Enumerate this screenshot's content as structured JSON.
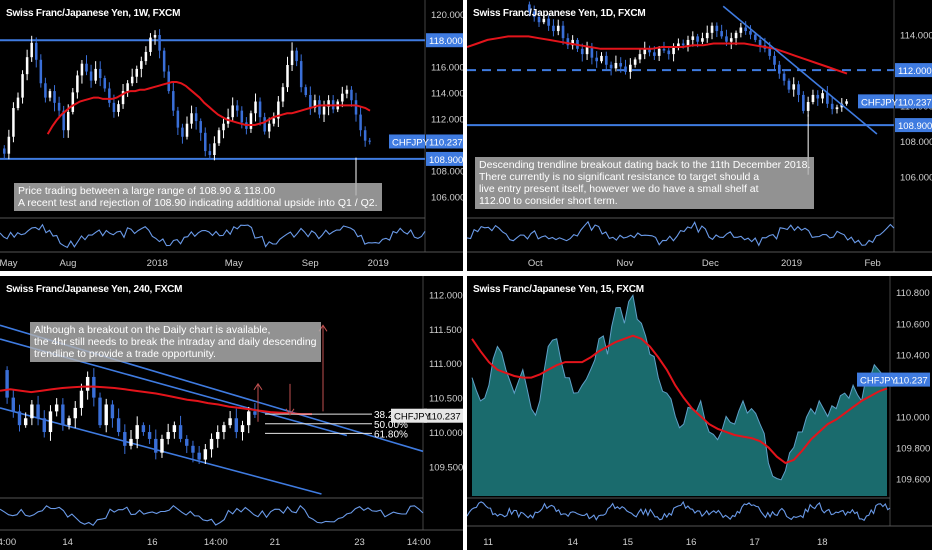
{
  "colors": {
    "background": "#000000",
    "candle_up": "#ffffff",
    "candle_down": "#3a6fd8",
    "moving_average": "#e3141b",
    "level_line": "#3f7be0",
    "oscillator": "#6a9ae8",
    "fib_line": "#e6e6e6",
    "arrow": "#c05050",
    "area_fill": "#1e7e80",
    "price_tag": "#3f7be0",
    "note_bg": "#b2b2b2"
  },
  "symbol_tag": "CHFJPY",
  "current_price": "110.237",
  "panels": [
    {
      "id": "weekly",
      "title": "Swiss Franc/Japanese Yen, 1W, FXCM",
      "note": "Price trading between a large range of 108.90 & 118.00\nA recent test and rejection of 108.90 indicating additional upside into Q1 / Q2.",
      "level_labels": [
        "118.000",
        "108.900"
      ]
    },
    {
      "id": "daily",
      "title": "Swiss Franc/Japanese Yen, 1D, FXCM",
      "note": "Descending trendline breakout dating back to the 11th December 2018.\nThere currently is no significant resistance to target should a\nlive entry present itself, however we do have a small shelf at\n112.00 to consider short term.",
      "level_labels": [
        "112.000",
        "108.900"
      ]
    },
    {
      "id": "h4",
      "title": "Swiss Franc/Japanese Yen, 240, FXCM",
      "note": "Although a breakout on the Daily chart is available,\nthe 4hr still needs to break the intraday and daily descending\ntrendline to provide a trade opportunity.",
      "fib_labels": [
        "38.20%",
        "50.00%",
        "61.80%"
      ]
    },
    {
      "id": "m15",
      "title": "Swiss Franc/Japanese Yen, 15, FXCM"
    }
  ],
  "chart_data": [
    {
      "type": "candlestick",
      "panel": "weekly",
      "title": "Swiss Franc/Japanese Yen, 1W, FXCM",
      "y_ticks": [
        "120.000",
        "118.000",
        "116.000",
        "114.000",
        "112.000",
        "110.000",
        "108.000",
        "106.000"
      ],
      "ylim": [
        104.6,
        120.7
      ],
      "x_ticks": [
        "May",
        "Aug",
        "2018",
        "May",
        "Sep",
        "2019"
      ],
      "x_tick_positions": [
        0.02,
        0.16,
        0.37,
        0.55,
        0.73,
        0.89
      ],
      "horizontal_levels": [
        118.0,
        108.9
      ],
      "close_series": [
        109.3,
        110.6,
        112.8,
        113.6,
        115.4,
        116.7,
        117.8,
        116.5,
        114.7,
        113.6,
        114.1,
        113.2,
        112.6,
        111.1,
        112.5,
        114.0,
        115.3,
        116.2,
        115.6,
        114.9,
        115.8,
        115.1,
        114.3,
        113.2,
        112.5,
        113.1,
        114.1,
        114.7,
        115.2,
        115.8,
        116.4,
        117.1,
        118.2,
        118.4,
        117.2,
        115.6,
        114.1,
        112.6,
        111.3,
        110.6,
        111.6,
        112.4,
        111.8,
        110.9,
        109.5,
        109.2,
        110.1,
        111.1,
        111.6,
        112.1,
        113.0,
        112.6,
        111.7,
        111.2,
        112.4,
        113.3,
        112.1,
        111.0,
        111.6,
        112.0,
        113.3,
        114.4,
        116.1,
        117.2,
        116.4,
        114.4,
        113.8,
        112.8,
        113.4,
        112.3,
        112.9,
        113.4,
        112.7,
        113.3,
        113.9,
        114.2,
        113.4,
        112.3,
        111.1,
        110.3,
        110.24
      ],
      "moving_average_series": [
        110.8,
        111.4,
        111.9,
        112.3,
        112.6,
        112.9,
        113.1,
        113.3,
        113.4,
        113.5,
        113.6,
        113.6,
        113.5,
        113.5,
        113.5,
        113.6,
        113.8,
        114.0,
        114.1,
        114.1,
        114.2,
        114.2,
        114.3,
        114.4,
        114.5,
        114.6,
        114.7,
        114.8,
        114.8,
        114.7,
        114.5,
        114.2,
        113.9,
        113.6,
        113.2,
        112.9,
        112.6,
        112.3,
        112.1,
        111.9,
        111.8,
        111.7,
        111.6,
        111.5,
        111.5,
        111.5,
        111.6,
        111.7,
        111.9,
        112.1,
        112.2,
        112.3,
        112.4,
        112.4,
        112.5,
        112.6,
        112.7,
        112.8,
        112.9,
        113.0,
        113.0,
        113.0,
        113.0,
        113.0,
        113.0,
        113.0,
        113.0,
        113.0,
        112.9,
        112.8,
        112.6
      ],
      "moving_average_start_index": 10,
      "low_wick_at_index": 77,
      "low_wick_value": 106.1,
      "price_tags": [
        "CHFJPY",
        "110.237",
        "108.900",
        "118.000"
      ]
    },
    {
      "type": "candlestick",
      "panel": "daily",
      "title": "Swiss Franc/Japanese Yen, 1D, FXCM",
      "y_ticks": [
        "114.000",
        "112.000",
        "110.000",
        "108.000",
        "106.000"
      ],
      "ylim": [
        104.0,
        115.5
      ],
      "x_ticks": [
        "Oct",
        "Nov",
        "Dec",
        "2019",
        "Feb"
      ],
      "x_tick_positions": [
        0.16,
        0.37,
        0.57,
        0.76,
        0.95
      ],
      "horizontal_levels": [
        112.0,
        108.9
      ],
      "dashed_levels": [
        112.0
      ],
      "trendline": {
        "start": [
          0.6,
          115.6
        ],
        "end": [
          0.96,
          108.4
        ]
      },
      "close_series": [
        115.3,
        115.0,
        114.7,
        114.9,
        114.5,
        114.2,
        114.5,
        113.8,
        113.4,
        113.7,
        113.2,
        112.9,
        113.3,
        112.7,
        112.5,
        112.8,
        112.3,
        112.1,
        112.4,
        112.2,
        111.9,
        112.3,
        112.6,
        112.9,
        113.2,
        113.0,
        112.8,
        113.2,
        113.1,
        112.9,
        113.3,
        113.5,
        113.4,
        113.7,
        113.9,
        113.6,
        113.8,
        114.1,
        114.5,
        114.2,
        113.9,
        113.6,
        113.8,
        114.1,
        114.4,
        114.2,
        114.0,
        113.7,
        113.4,
        113.2,
        112.8,
        112.3,
        111.8,
        111.4,
        110.9,
        111.2,
        110.6,
        109.7,
        110.2,
        110.6,
        110.4,
        110.7,
        110.1,
        109.8,
        109.9,
        110.1,
        110.24
      ],
      "moving_average_series": [
        113.3,
        113.5,
        113.7,
        113.8,
        113.9,
        113.9,
        113.9,
        113.8,
        113.7,
        113.6,
        113.5,
        113.4,
        113.3,
        113.2,
        113.2,
        113.2,
        113.2,
        113.2,
        113.2,
        113.3,
        113.3,
        113.3,
        113.4,
        113.4,
        113.5,
        113.5,
        113.5,
        113.5,
        113.4,
        113.3,
        113.2,
        113.0,
        112.8,
        112.6,
        112.4,
        112.2,
        112.0,
        111.8
      ],
      "moving_average_start_index": 0,
      "moving_average_span": [
        0.0,
        0.78
      ],
      "low_wick_at_index": 58,
      "low_wick_value": 106.1,
      "price_tags": [
        "CHFJPY",
        "110.237",
        "108.900",
        "112.000"
      ]
    },
    {
      "type": "candlestick",
      "panel": "h4",
      "title": "Swiss Franc/Japanese Yen, 240, FXCM",
      "y_ticks": [
        "112.000",
        "111.500",
        "111.000",
        "110.500",
        "110.000",
        "109.500"
      ],
      "ylim": [
        109.1,
        112.15
      ],
      "x_ticks": [
        "14:00",
        "14",
        "16",
        "14:00",
        "21",
        "23",
        "14:00"
      ],
      "x_tick_positions": [
        0.01,
        0.16,
        0.36,
        0.51,
        0.65,
        0.85,
        0.99
      ],
      "fib_levels": [
        {
          "label": "38.20%",
          "value": 110.26
        },
        {
          "label": "50.00%",
          "value": 110.12
        },
        {
          "label": "61.80%",
          "value": 109.98
        }
      ],
      "trendlines": [
        {
          "start": [
            0.0,
            111.55
          ],
          "end": [
            1.0,
            109.72
          ]
        },
        {
          "start": [
            0.0,
            111.35
          ],
          "end": [
            0.82,
            109.95
          ]
        },
        {
          "start": [
            0.0,
            110.35
          ],
          "end": [
            0.76,
            109.1
          ]
        }
      ],
      "close_series": [
        110.5,
        110.3,
        110.1,
        110.2,
        110.4,
        110.2,
        110.0,
        110.3,
        110.4,
        110.1,
        110.2,
        110.35,
        110.6,
        110.8,
        110.5,
        110.1,
        110.4,
        110.2,
        110.0,
        109.8,
        109.9,
        110.1,
        110.0,
        109.9,
        109.7,
        109.9,
        110.0,
        110.1,
        109.9,
        109.8,
        109.7,
        109.6,
        109.75,
        109.9,
        110.0,
        110.1,
        110.2,
        110.0,
        110.1,
        110.3,
        110.25
      ],
      "moving_average_series": [
        110.6,
        110.62,
        110.6,
        110.58,
        110.6,
        110.62,
        110.64,
        110.65,
        110.66,
        110.66,
        110.65,
        110.64,
        110.62,
        110.6,
        110.58,
        110.56,
        110.53,
        110.5,
        110.47,
        110.45,
        110.42,
        110.4,
        110.37,
        110.35,
        110.33,
        110.31,
        110.29,
        110.28,
        110.27,
        110.26,
        110.26
      ],
      "moving_average_span": [
        0.0,
        0.74
      ],
      "price_tags": [
        "CHFJPY",
        "110.237"
      ]
    },
    {
      "type": "area",
      "panel": "m15",
      "title": "Swiss Franc/Japanese Yen, 15, FXCM",
      "y_ticks": [
        "110.800",
        "110.600",
        "110.400",
        "110.000",
        "109.800",
        "109.600"
      ],
      "ylim": [
        109.5,
        110.84
      ],
      "x_ticks": [
        "11",
        "14",
        "15",
        "16",
        "17",
        "18"
      ],
      "x_tick_positions": [
        0.05,
        0.25,
        0.38,
        0.53,
        0.68,
        0.84
      ],
      "values": [
        110.25,
        110.1,
        110.2,
        110.45,
        110.3,
        110.15,
        110.3,
        110.05,
        110.1,
        110.45,
        110.5,
        110.25,
        110.15,
        110.2,
        110.3,
        110.5,
        110.4,
        110.7,
        110.6,
        110.78,
        110.6,
        110.4,
        110.25,
        110.15,
        110.0,
        109.95,
        110.05,
        110.1,
        109.9,
        109.85,
        110.0,
        109.95,
        110.1,
        110.05,
        109.95,
        109.7,
        109.6,
        109.65,
        109.8,
        109.9,
        110.05,
        110.1,
        110.0,
        110.05,
        110.15,
        110.2,
        110.1,
        110.25,
        110.3,
        110.24
      ],
      "moving_average_series": [
        110.5,
        110.42,
        110.35,
        110.3,
        110.28,
        110.26,
        110.25,
        110.25,
        110.27,
        110.3,
        110.33,
        110.35,
        110.35,
        110.35,
        110.38,
        110.42,
        110.45,
        110.48,
        110.5,
        110.52,
        110.5,
        110.45,
        110.38,
        110.3,
        110.2,
        110.12,
        110.05,
        110.0,
        109.95,
        109.92,
        109.9,
        109.88,
        109.87,
        109.86,
        109.84,
        109.8,
        109.74,
        109.7,
        109.72,
        109.78,
        109.85,
        109.9,
        109.95,
        109.98,
        110.02,
        110.06,
        110.1,
        110.13,
        110.16,
        110.18
      ],
      "price_tags": [
        "CHFJPY",
        "110.237"
      ]
    }
  ]
}
